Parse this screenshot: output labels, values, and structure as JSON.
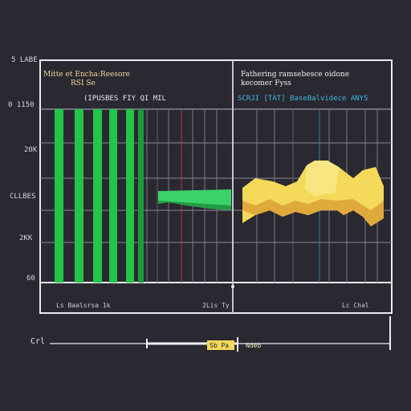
{
  "left_pane": {
    "title_line1": "Mitte et Encha:Reesore",
    "title_line2": "RSI Se",
    "legend": "(IPUSBES FIY QI MIL"
  },
  "right_pane": {
    "title_line1": "Fathering ramsebesce oidone",
    "title_line2": "kecomer Fyss",
    "legend": "SCRJI [TAT] BaseBalvidece ANYS"
  },
  "y_axis_labels": [
    "5 LABE",
    "0 1150",
    "20K",
    "CLLBES",
    "2KK",
    "60"
  ],
  "x_axis_labels": [
    "Ls Baalsrsa 1k",
    "2Lis Ty",
    "Lc Chal"
  ],
  "scrubber": {
    "start_label": "Crl",
    "handle_label": "Sb Pa",
    "end_label": "Ndeb"
  },
  "colors": {
    "background": "#2a2830",
    "frame": "#eceaf0",
    "grid": "#8a8892",
    "bar_green": "#22c54a",
    "ribbon_green": "#3ad36a",
    "area_yellow": "#f4d95a",
    "accent_blue": "#3fb8e8"
  },
  "chart_data": [
    {
      "type": "bar",
      "title": "Mitte et Encha:Reesore",
      "series": [
        {
          "values": [
            1,
            1,
            1,
            1,
            1,
            1
          ]
        }
      ]
    },
    {
      "type": "area",
      "title": "Fathering ramsebesce oidone",
      "series": [
        {
          "values": [
            0.45,
            0.55,
            0.6,
            0.5,
            0.55,
            0.75,
            0.95,
            0.85,
            0.7,
            0.5
          ]
        }
      ]
    }
  ]
}
